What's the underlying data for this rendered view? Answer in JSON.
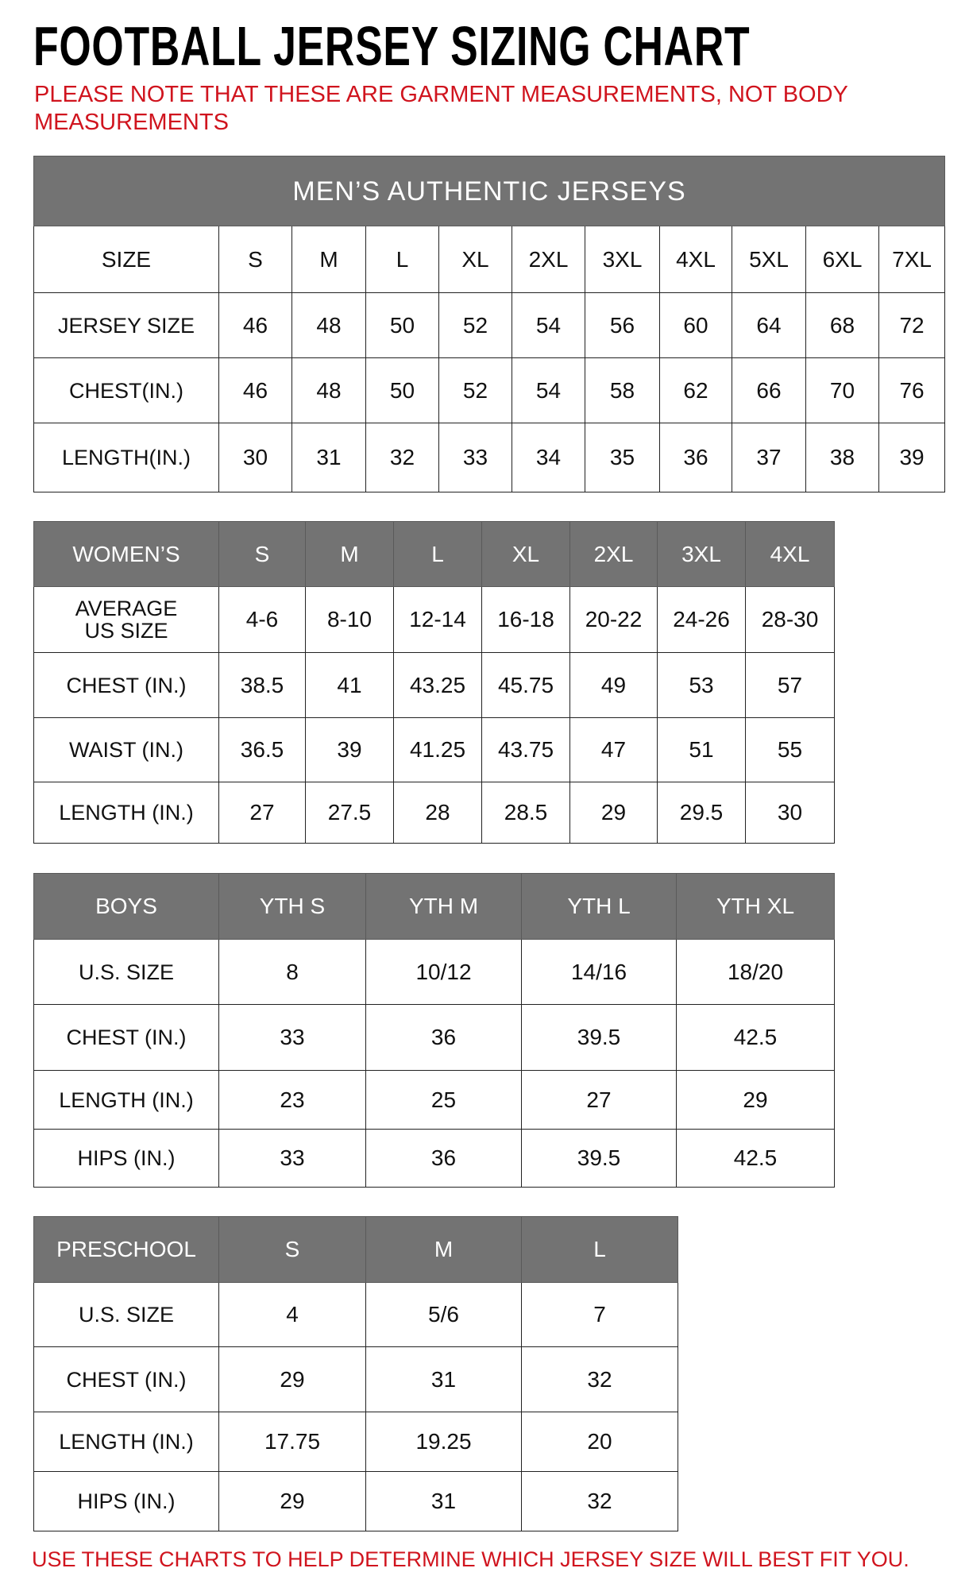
{
  "title": "FOOTBALL JERSEY SIZING CHART",
  "note": "PLEASE NOTE THAT THESE ARE GARMENT MEASUREMENTS, NOT BODY MEASUREMENTS",
  "footer": "USE THESE CHARTS TO HELP DETERMINE WHICH JERSEY SIZE WILL BEST FIT YOU.",
  "colors": {
    "header_bg": "#737373",
    "note_red": "#d0141e"
  },
  "tables": [
    {
      "band": "MEN’S AUTHENTIC JERSEYS",
      "header": [
        "SIZE",
        "S",
        "M",
        "L",
        "XL",
        "2XL",
        "3XL",
        "4XL",
        "5XL",
        "6XL",
        "7XL"
      ],
      "header_dark": false,
      "rows": [
        [
          "JERSEY SIZE",
          "46",
          "48",
          "50",
          "52",
          "54",
          "56",
          "60",
          "64",
          "68",
          "72"
        ],
        [
          "CHEST(IN.)",
          "46",
          "48",
          "50",
          "52",
          "54",
          "58",
          "62",
          "66",
          "70",
          "76"
        ],
        [
          "LENGTH(IN.)",
          "30",
          "31",
          "32",
          "33",
          "34",
          "35",
          "36",
          "37",
          "38",
          "39"
        ]
      ]
    },
    {
      "header": [
        "WOMEN’S",
        "S",
        "M",
        "L",
        "XL",
        "2XL",
        "3XL",
        "4XL"
      ],
      "header_dark": true,
      "rows": [
        [
          "AVERAGE US SIZE",
          "4-6",
          "8-10",
          "12-14",
          "16-18",
          "20-22",
          "24-26",
          "28-30"
        ],
        [
          "CHEST (IN.)",
          "38.5",
          "41",
          "43.25",
          "45.75",
          "49",
          "53",
          "57"
        ],
        [
          "WAIST (IN.)",
          "36.5",
          "39",
          "41.25",
          "43.75",
          "47",
          "51",
          "55"
        ],
        [
          "LENGTH (IN.)",
          "27",
          "27.5",
          "28",
          "28.5",
          "29",
          "29.5",
          "30"
        ]
      ]
    },
    {
      "header": [
        "BOYS",
        "YTH S",
        "YTH M",
        "YTH L",
        "YTH XL"
      ],
      "header_dark": true,
      "rows": [
        [
          "U.S. SIZE",
          "8",
          "10/12",
          "14/16",
          "18/20"
        ],
        [
          "CHEST (IN.)",
          "33",
          "36",
          "39.5",
          "42.5"
        ],
        [
          "LENGTH (IN.)",
          "23",
          "25",
          "27",
          "29"
        ],
        [
          "HIPS (IN.)",
          "33",
          "36",
          "39.5",
          "42.5"
        ]
      ]
    },
    {
      "header": [
        "PRESCHOOL",
        "S",
        "M",
        "L"
      ],
      "header_dark": true,
      "rows": [
        [
          "U.S. SIZE",
          "4",
          "5/6",
          "7"
        ],
        [
          "CHEST (IN.)",
          "29",
          "31",
          "32"
        ],
        [
          "LENGTH (IN.)",
          "17.75",
          "19.25",
          "20"
        ],
        [
          "HIPS (IN.)",
          "29",
          "31",
          "32"
        ]
      ]
    }
  ]
}
